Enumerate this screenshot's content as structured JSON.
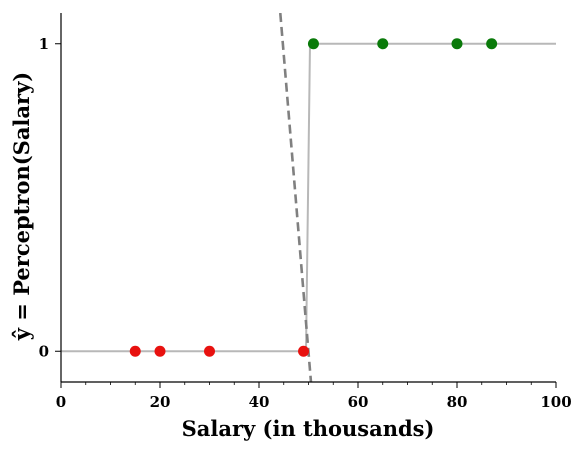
{
  "chart_data": {
    "type": "scatter",
    "xlabel": "Salary (in thousands)",
    "ylabel": "ŷ = Perceptron(Salary)",
    "xlim": [
      0,
      100
    ],
    "ylim": [
      -0.1,
      1.1
    ],
    "x_ticks": [
      "0",
      "20",
      "40",
      "60",
      "80",
      "100"
    ],
    "y_ticks": [
      "0",
      "1"
    ],
    "grid": false,
    "legend": "none",
    "series": [
      {
        "color": "#e8110f",
        "points": [
          [
            15,
            0
          ],
          [
            20,
            0
          ],
          [
            30,
            0
          ],
          [
            49,
            0
          ]
        ]
      },
      {
        "color": "#0a7a0a",
        "points": [
          [
            51,
            1
          ],
          [
            65,
            1
          ],
          [
            80,
            1
          ],
          [
            87,
            1
          ]
        ]
      }
    ],
    "step_line": {
      "color": "#b8b8b8",
      "points": [
        [
          0,
          0
        ],
        [
          49.5,
          0
        ],
        [
          50.3,
          1
        ],
        [
          100,
          1
        ]
      ]
    },
    "decision_line": {
      "color": "#808080",
      "style": "dashed",
      "points": [
        [
          44.3,
          1.1
        ],
        [
          50.5,
          -0.1
        ]
      ]
    }
  }
}
